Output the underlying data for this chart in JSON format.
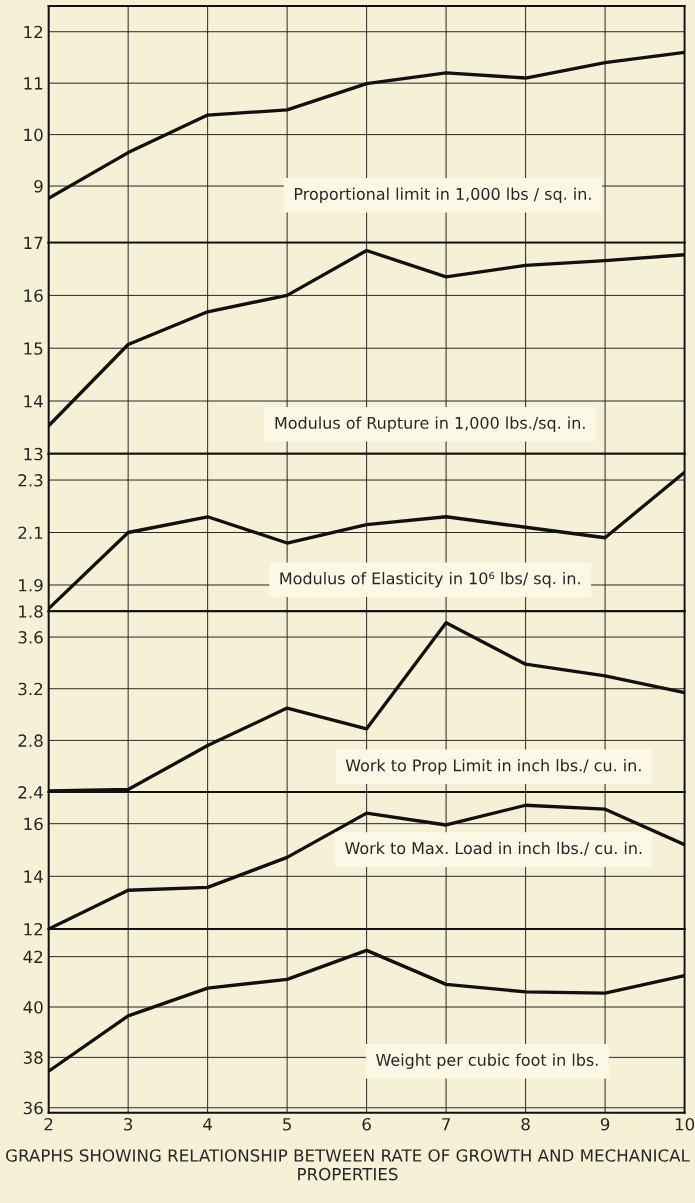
{
  "chart_data": [
    {
      "type": "line",
      "x": [
        2,
        3,
        4,
        5,
        6,
        7,
        8,
        9,
        10
      ],
      "xlim": [
        2,
        10
      ],
      "xticks": [
        2,
        3,
        4,
        5,
        6,
        7,
        8,
        9,
        10
      ],
      "ylim": [
        7.9,
        12.5
      ],
      "yticks": [
        9,
        10,
        11,
        12
      ],
      "tick_labels": "y",
      "grid": true,
      "annotations": [
        "Proportional limit in 1,000 lbs / sq. in."
      ],
      "series": [
        {
          "color": "#111111",
          "values": [
            8.76,
            9.65,
            10.38,
            10.48,
            10.99,
            11.2,
            11.1,
            11.4,
            11.6
          ]
        }
      ]
    },
    {
      "type": "line",
      "x": [
        2,
        3,
        4,
        5,
        6,
        7,
        8,
        9,
        10
      ],
      "xlim": [
        2,
        10
      ],
      "xticks": [
        2,
        3,
        4,
        5,
        6,
        7,
        8,
        9,
        10
      ],
      "ylim": [
        13,
        17
      ],
      "yticks": [
        13,
        14,
        15,
        16,
        17
      ],
      "tick_labels": "y",
      "grid": true,
      "annotations": [
        "Modulus of Rupture in 1,000 lbs./sq. in."
      ],
      "series": [
        {
          "color": "#111111",
          "values": [
            13.53,
            15.07,
            15.69,
            16.0,
            16.85,
            16.35,
            16.57,
            16.66,
            16.77
          ]
        }
      ]
    },
    {
      "type": "line",
      "x": [
        2,
        3,
        4,
        5,
        6,
        7,
        8,
        9,
        10
      ],
      "xlim": [
        2,
        10
      ],
      "xticks": [
        2,
        3,
        4,
        5,
        6,
        7,
        8,
        9,
        10
      ],
      "ylim": [
        1.8,
        2.4
      ],
      "yticks": [
        1.8,
        1.9,
        2.1,
        2.3
      ],
      "tick_labels": "y",
      "grid": true,
      "annotations": [
        "Modulus of Elasticity in 10⁶ lbs/ sq. in."
      ],
      "series": [
        {
          "color": "#111111",
          "values": [
            1.81,
            2.1,
            2.16,
            2.06,
            2.13,
            2.16,
            2.12,
            2.08,
            2.33
          ]
        }
      ]
    },
    {
      "type": "line",
      "x": [
        2,
        3,
        4,
        5,
        6,
        7,
        8,
        9,
        10
      ],
      "xlim": [
        2,
        10
      ],
      "xticks": [
        2,
        3,
        4,
        5,
        6,
        7,
        8,
        9,
        10
      ],
      "ylim": [
        2.4,
        3.8
      ],
      "yticks": [
        2.4,
        2.8,
        3.2,
        3.6
      ],
      "tick_labels": "y",
      "grid": true,
      "annotations": [
        "Work to Prop Limit in inch lbs./ cu. in."
      ],
      "series": [
        {
          "color": "#111111",
          "values": [
            2.41,
            2.42,
            2.76,
            3.05,
            2.89,
            3.71,
            3.39,
            3.3,
            3.17
          ]
        }
      ]
    },
    {
      "type": "line",
      "x": [
        2,
        3,
        4,
        5,
        6,
        7,
        8,
        9,
        10
      ],
      "xlim": [
        2,
        10
      ],
      "xticks": [
        2,
        3,
        4,
        5,
        6,
        7,
        8,
        9,
        10
      ],
      "ylim": [
        12,
        17.2
      ],
      "yticks": [
        12,
        14,
        16
      ],
      "tick_labels": "y",
      "grid": true,
      "annotations": [
        "Work to Max. Load in inch lbs./ cu. in."
      ],
      "series": [
        {
          "color": "#111111",
          "values": [
            12.0,
            13.47,
            13.58,
            14.72,
            16.4,
            15.95,
            16.7,
            16.55,
            15.2
          ]
        }
      ]
    },
    {
      "type": "line",
      "x": [
        2,
        3,
        4,
        5,
        6,
        7,
        8,
        9,
        10
      ],
      "xlim": [
        2,
        10
      ],
      "xticks": [
        2,
        3,
        4,
        5,
        6,
        7,
        8,
        9,
        10
      ],
      "ylim": [
        35.8,
        43.1
      ],
      "yticks": [
        36,
        38,
        40,
        42
      ],
      "grid": true,
      "annotations": [
        "Weight per cubic foot in lbs.",
        "GRAPHS SHOWING RELATIONSHIP BETWEEN RATE OF GROWTH AND MECHANICAL PROPERTIES"
      ],
      "series": [
        {
          "color": "#111111",
          "values": [
            37.45,
            39.65,
            40.75,
            41.1,
            42.25,
            40.9,
            40.6,
            40.55,
            41.25
          ]
        }
      ]
    }
  ]
}
